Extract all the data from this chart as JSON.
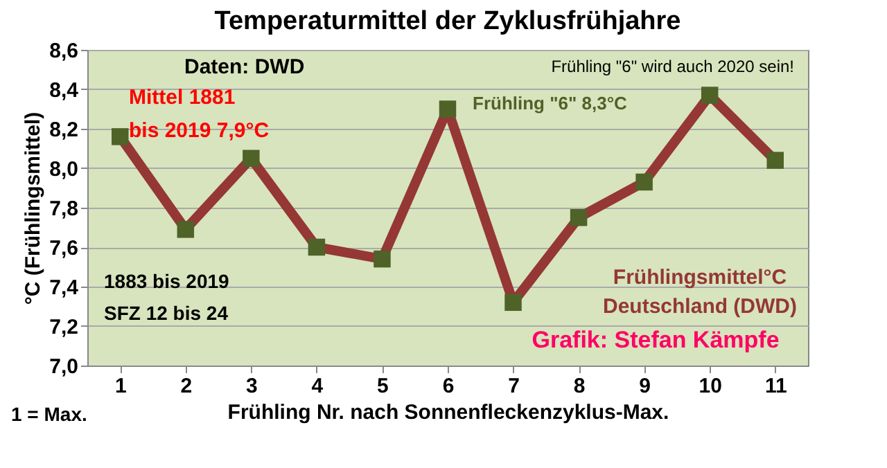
{
  "chart_data": {
    "type": "line",
    "title": "Temperaturmittel der Zyklusfrühjahre",
    "xlabel": "Frühling Nr. nach Sonnenfleckenzyklus-Max.",
    "ylabel": "°C (Frühlingsmittel)",
    "categories": [
      "1",
      "2",
      "3",
      "4",
      "5",
      "6",
      "7",
      "8",
      "9",
      "10",
      "11"
    ],
    "series": [
      {
        "name": "Frühlingsmittel°C Deutschland (DWD)",
        "color": "#953735",
        "values": [
          8.16,
          7.69,
          8.05,
          7.6,
          7.54,
          8.3,
          7.32,
          7.75,
          7.93,
          8.37,
          8.04
        ]
      },
      {
        "type": "scatter",
        "marker": "square",
        "color": "#4f6228",
        "values": [
          8.16,
          7.69,
          8.05,
          7.6,
          7.54,
          8.3,
          7.32,
          7.75,
          7.93,
          8.37,
          8.04
        ]
      }
    ],
    "ylim": [
      7.0,
      8.6
    ],
    "yticks": [
      {
        "value": 7.0,
        "label": "7,0"
      },
      {
        "value": 7.2,
        "label": "7,2"
      },
      {
        "value": 7.4,
        "label": "7,4"
      },
      {
        "value": 7.6,
        "label": "7,6"
      },
      {
        "value": 7.8,
        "label": "7,8"
      },
      {
        "value": 8.0,
        "label": "8,0"
      },
      {
        "value": 8.2,
        "label": "8,2"
      },
      {
        "value": 8.4,
        "label": "8,4"
      },
      {
        "value": 8.6,
        "label": "8,6"
      }
    ],
    "grid": "y",
    "line_style": "solid",
    "legend": false,
    "annotations": [
      "Daten: DWD",
      "Mittel 1881 bis 2019 7,9°C",
      "Frühling \"6\" wird auch 2020 sein!",
      {
        "text": "Frühling \"6\" 8,3°C",
        "x": "6",
        "y": 8.3
      },
      "1883 bis 2019 SFZ 12 bis 24",
      "Grafik: Stefan Kämpfe",
      "1 = Max."
    ]
  }
}
